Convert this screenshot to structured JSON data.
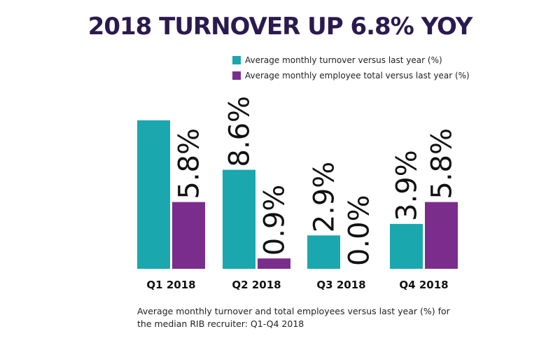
{
  "title": "2018 TURNOVER UP 6.8% YOY",
  "caption": {
    "line1": "Average monthly turnover and total employees versus last year (%) for",
    "line2": "the median RIB recruiter: Q1-Q4 2018"
  },
  "colors": {
    "turnover": "#1aa7ae",
    "employees": "#7b2d8c",
    "title": "#2b1a4f"
  },
  "chart_data": {
    "type": "bar",
    "categories": [
      "Q1 2018",
      "Q2 2018",
      "Q3 2018",
      "Q4 2018"
    ],
    "series": [
      {
        "name": "Average monthly turnover versus last year (%)",
        "values": [
          null,
          8.6,
          2.9,
          3.9
        ],
        "labels": [
          "",
          "8.6%",
          "2.9%",
          "3.9%"
        ],
        "estimated_values": [
          12.9,
          8.6,
          2.9,
          3.9
        ]
      },
      {
        "name": "Average monthly employee total versus last year (%)",
        "values": [
          5.8,
          0.9,
          0.0,
          5.8
        ],
        "labels": [
          "5.8%",
          "0.9%",
          "0.0%",
          "5.8%"
        ]
      }
    ],
    "legend_position": "top",
    "grid": false,
    "ylim": [
      0,
      13.5
    ]
  }
}
